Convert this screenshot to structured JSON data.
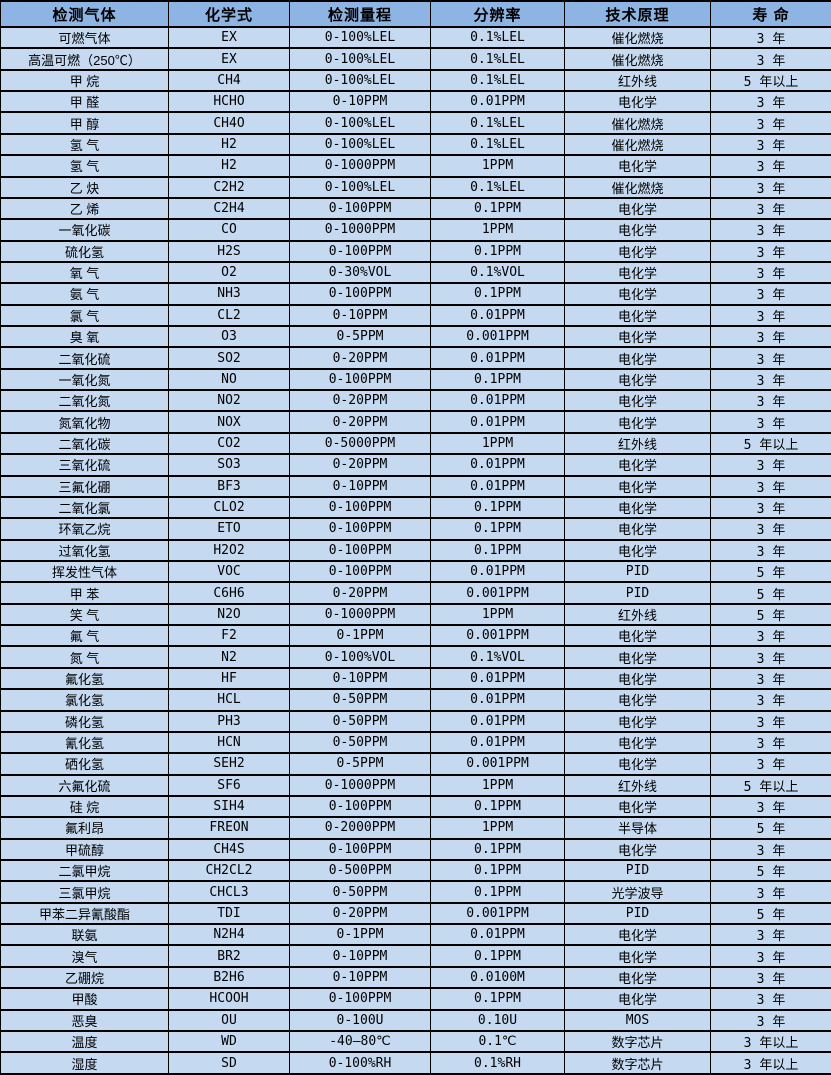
{
  "title": "气体传感器检测规格表",
  "colors": {
    "header_bg": "#8DB4E2",
    "row_bg": "#C5D9F1",
    "border": "#000000",
    "text": "#000000"
  },
  "chart_data": {
    "type": "table",
    "title": "",
    "legend_position": "none",
    "columns": [
      "检测气体",
      "化学式",
      "检测量程",
      "分辨率",
      "技术原理",
      "寿  命"
    ],
    "column_keys": [
      "gas",
      "formula",
      "range",
      "resolution",
      "principle",
      "lifespan"
    ],
    "rows": [
      [
        "可燃气体",
        "EX",
        "0-100%LEL",
        "0.1%LEL",
        "催化燃烧",
        "3 年"
      ],
      [
        "高温可燃（250℃）",
        "EX",
        "0-100%LEL",
        "0.1%LEL",
        "催化燃烧",
        "3 年"
      ],
      [
        "甲  烷",
        "CH4",
        "0-100%LEL",
        "0.1%LEL",
        "红外线",
        "5 年以上"
      ],
      [
        "甲  醛",
        "HCHO",
        "0-10PPM",
        "0.01PPM",
        "电化学",
        "3 年"
      ],
      [
        "甲  醇",
        "CH4O",
        "0-100%LEL",
        "0.1%LEL",
        "催化燃烧",
        "3 年"
      ],
      [
        "氢  气",
        "H2",
        "0-100%LEL",
        "0.1%LEL",
        "催化燃烧",
        "3 年"
      ],
      [
        "氢  气",
        "H2",
        "0-1000PPM",
        "1PPM",
        "电化学",
        "3 年"
      ],
      [
        "乙  炔",
        "C2H2",
        "0-100%LEL",
        "0.1%LEL",
        "催化燃烧",
        "3 年"
      ],
      [
        "乙  烯",
        "C2H4",
        "0-100PPM",
        "0.1PPM",
        "电化学",
        "3 年"
      ],
      [
        "一氧化碳",
        "CO",
        "0-1000PPM",
        "1PPM",
        "电化学",
        "3 年"
      ],
      [
        "硫化氢",
        "H2S",
        "0-100PPM",
        "0.1PPM",
        "电化学",
        "3 年"
      ],
      [
        "氧  气",
        "O2",
        "0-30%VOL",
        "0.1%VOL",
        "电化学",
        "3 年"
      ],
      [
        "氨  气",
        "NH3",
        "0-100PPM",
        "0.1PPM",
        "电化学",
        "3 年"
      ],
      [
        "氯  气",
        "CL2",
        "0-10PPM",
        "0.01PPM",
        "电化学",
        "3 年"
      ],
      [
        "臭  氧",
        "O3",
        "0-5PPM",
        "0.001PPM",
        "电化学",
        "3 年"
      ],
      [
        "二氧化硫",
        "SO2",
        "0-20PPM",
        "0.01PPM",
        "电化学",
        "3 年"
      ],
      [
        "一氧化氮",
        "NO",
        "0-100PPM",
        "0.1PPM",
        "电化学",
        "3 年"
      ],
      [
        "二氧化氮",
        "NO2",
        "0-20PPM",
        "0.01PPM",
        "电化学",
        "3 年"
      ],
      [
        "氮氧化物",
        "NOX",
        "0-20PPM",
        "0.01PPM",
        "电化学",
        "3 年"
      ],
      [
        "二氧化碳",
        "CO2",
        "0-5000PPM",
        "1PPM",
        "红外线",
        "5 年以上"
      ],
      [
        "三氧化硫",
        "SO3",
        "0-20PPM",
        "0.01PPM",
        "电化学",
        "3 年"
      ],
      [
        "三氟化硼",
        "BF3",
        "0-10PPM",
        "0.01PPM",
        "电化学",
        "3 年"
      ],
      [
        "二氧化氯",
        "CLO2",
        "0-100PPM",
        "0.1PPM",
        "电化学",
        "3 年"
      ],
      [
        "环氧乙烷",
        "ETO",
        "0-100PPM",
        "0.1PPM",
        "电化学",
        "3 年"
      ],
      [
        "过氧化氢",
        "H2O2",
        "0-100PPM",
        "0.1PPM",
        "电化学",
        "3 年"
      ],
      [
        "挥发性气体",
        "VOC",
        "0-100PPM",
        "0.01PPM",
        "PID",
        "5 年"
      ],
      [
        "甲  苯",
        "C6H6",
        "0-20PPM",
        "0.001PPM",
        "PID",
        "5 年"
      ],
      [
        "笑  气",
        "N2O",
        "0-1000PPM",
        "1PPM",
        "红外线",
        "5 年"
      ],
      [
        "氟  气",
        "F2",
        "0-1PPM",
        "0.001PPM",
        "电化学",
        "3 年"
      ],
      [
        "氮  气",
        "N2",
        "0-100%VOL",
        "0.1%VOL",
        "电化学",
        "3 年"
      ],
      [
        "氟化氢",
        "HF",
        "0-10PPM",
        "0.01PPM",
        "电化学",
        "3 年"
      ],
      [
        "氯化氢",
        "HCL",
        "0-50PPM",
        "0.01PPM",
        "电化学",
        "3 年"
      ],
      [
        "磷化氢",
        "PH3",
        "0-50PPM",
        "0.01PPM",
        "电化学",
        "3 年"
      ],
      [
        "氰化氢",
        "HCN",
        "0-50PPM",
        "0.01PPM",
        "电化学",
        "3 年"
      ],
      [
        "硒化氢",
        "SEH2",
        "0-5PPM",
        "0.001PPM",
        "电化学",
        "3 年"
      ],
      [
        "六氟化硫",
        "SF6",
        "0-1000PPM",
        "1PPM",
        "红外线",
        "5 年以上"
      ],
      [
        "硅  烷",
        "SIH4",
        "0-100PPM",
        "0.1PPM",
        "电化学",
        "3 年"
      ],
      [
        "氟利昂",
        "FREON",
        "0-2000PPM",
        "1PPM",
        "半导体",
        "5 年"
      ],
      [
        "甲硫醇",
        "CH4S",
        "0-100PPM",
        "0.1PPM",
        "电化学",
        "3 年"
      ],
      [
        "二氯甲烷",
        "CH2CL2",
        "0-500PPM",
        "0.1PPM",
        "PID",
        "5 年"
      ],
      [
        "三氯甲烷",
        "CHCL3",
        "0-50PPM",
        "0.1PPM",
        "光学波导",
        "3 年"
      ],
      [
        "甲苯二异氰酸酯",
        "TDI",
        "0-20PPM",
        "0.001PPM",
        "PID",
        "5 年"
      ],
      [
        "联氨",
        "N2H4",
        "0-1PPM",
        "0.01PPM",
        "电化学",
        "3 年"
      ],
      [
        "溴气",
        "BR2",
        "0-10PPM",
        "0.1PPM",
        "电化学",
        "3 年"
      ],
      [
        "乙硼烷",
        "B2H6",
        "0-10PPM",
        "0.0100M",
        "电化学",
        "3 年"
      ],
      [
        "甲酸",
        "HCOOH",
        "0-100PPM",
        "0.1PPM",
        "电化学",
        "3 年"
      ],
      [
        "恶臭",
        "OU",
        "0-100U",
        "0.10U",
        "MOS",
        "3 年"
      ],
      [
        "温度",
        "WD",
        "-40—80℃",
        "0.1℃",
        "数字芯片",
        "3 年以上"
      ],
      [
        "湿度",
        "SD",
        "0-100%RH",
        "0.1%RH",
        "数字芯片",
        "3 年以上"
      ]
    ]
  }
}
